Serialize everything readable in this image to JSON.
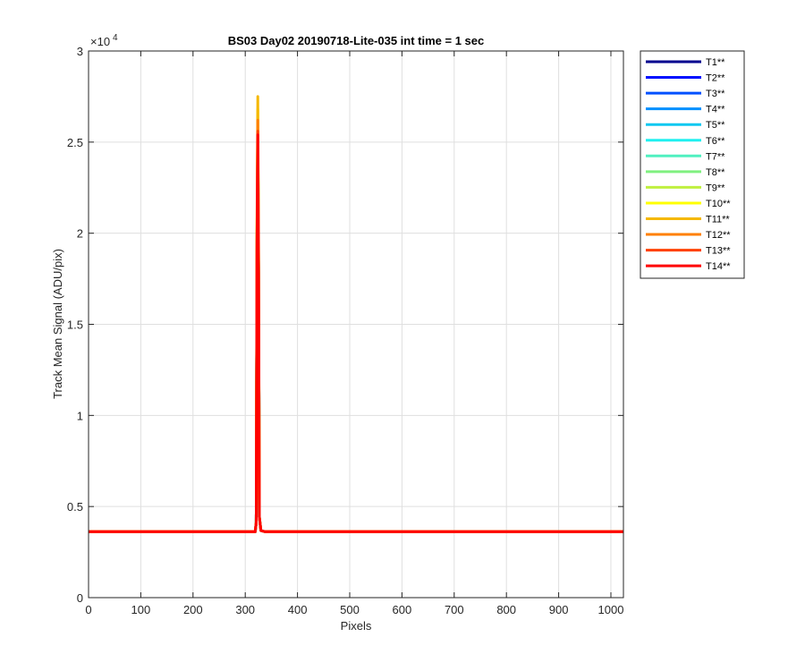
{
  "chart_data": {
    "type": "line",
    "title": "BS03 Day02 20190718-Lite-035 int time = 1 sec",
    "xlabel": "Pixels",
    "ylabel": "Track Mean Signal (ADU/pix)",
    "xlim": [
      0,
      1024
    ],
    "ylim": [
      0,
      30000
    ],
    "xticks": [
      0,
      100,
      200,
      300,
      400,
      500,
      600,
      700,
      800,
      900,
      1000
    ],
    "xtick_labels": [
      "0",
      "100",
      "200",
      "300",
      "400",
      "500",
      "600",
      "700",
      "800",
      "900",
      "1000"
    ],
    "yticks": [
      0,
      5000,
      10000,
      15000,
      20000,
      25000,
      30000
    ],
    "ytick_labels": [
      "0",
      "0.5",
      "1",
      "1.5",
      "2",
      "2.5",
      "3"
    ],
    "y_multiplier_base": "×10",
    "y_multiplier_exp": "4",
    "grid": true,
    "legend_position": "outside-top-right",
    "baseline": 3620,
    "peak_center": 324,
    "series": [
      {
        "name": "T1**",
        "color": "#00008f",
        "peak": 25000
      },
      {
        "name": "T2**",
        "color": "#0010ff",
        "peak": 25100
      },
      {
        "name": "T3**",
        "color": "#0050ff",
        "peak": 25200
      },
      {
        "name": "T4**",
        "color": "#0090ff",
        "peak": 25300
      },
      {
        "name": "T5**",
        "color": "#10c8f0",
        "peak": 25400
      },
      {
        "name": "T6**",
        "color": "#20f0f0",
        "peak": 25500
      },
      {
        "name": "T7**",
        "color": "#50f0c0",
        "peak": 25700
      },
      {
        "name": "T8**",
        "color": "#80f080",
        "peak": 25900
      },
      {
        "name": "T9**",
        "color": "#c0f040",
        "peak": 26200
      },
      {
        "name": "T10**",
        "color": "#ffff00",
        "peak": 26800
      },
      {
        "name": "T11**",
        "color": "#f5b800",
        "peak": 27500
      },
      {
        "name": "T12**",
        "color": "#ff8000",
        "peak": 26200
      },
      {
        "name": "T13**",
        "color": "#ff4000",
        "peak": 25600
      },
      {
        "name": "T14**",
        "color": "#ff0000",
        "peak": 25400
      }
    ]
  }
}
